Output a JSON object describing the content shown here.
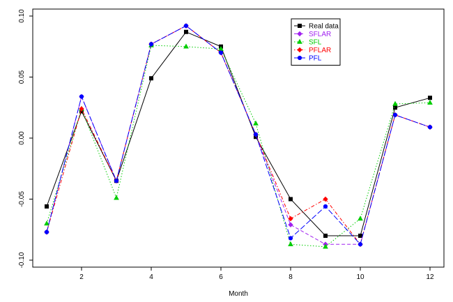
{
  "chart_data": {
    "type": "line",
    "title": "",
    "xlabel": "Month",
    "ylabel": "",
    "xlim": [
      1,
      12
    ],
    "ylim": [
      -0.1,
      0.1
    ],
    "x": [
      1,
      2,
      3,
      4,
      5,
      6,
      7,
      8,
      9,
      10,
      11,
      12
    ],
    "xticks": [
      2,
      4,
      6,
      8,
      10,
      12
    ],
    "xtick_labels": [
      "2",
      "4",
      "6",
      "8",
      "10",
      "12"
    ],
    "yticks": [
      -0.1,
      -0.05,
      0,
      0.05,
      0.1
    ],
    "ytick_labels": [
      "-0.10",
      "-0.05",
      "0.00",
      "0.05",
      "0.10"
    ],
    "grid": false,
    "legend_position": "top-right",
    "series": [
      {
        "name": "Real data",
        "color": "#000000",
        "marker": "square",
        "dash": "solid",
        "values": [
          -0.056,
          0.022,
          -0.035,
          0.049,
          0.087,
          0.075,
          0.001,
          -0.05,
          -0.08,
          -0.08,
          0.025,
          0.033
        ]
      },
      {
        "name": "SFLAR",
        "color": "#a020f0",
        "marker": "diamond",
        "dash": "dashed",
        "values": [
          -0.077,
          0.034,
          -0.035,
          0.077,
          0.092,
          0.07,
          0.003,
          -0.071,
          -0.087,
          -0.087,
          0.019,
          0.009
        ]
      },
      {
        "name": "SFL",
        "color": "#00cd00",
        "marker": "triangle",
        "dash": "dotted",
        "values": [
          -0.07,
          0.024,
          -0.049,
          0.076,
          0.075,
          0.073,
          0.012,
          -0.087,
          -0.089,
          -0.066,
          0.028,
          0.029
        ]
      },
      {
        "name": "PFLAR",
        "color": "#ff0000",
        "marker": "diamond",
        "dash": "dotdash",
        "values": [
          -0.077,
          0.024,
          -0.035,
          0.077,
          0.092,
          0.07,
          0.003,
          -0.066,
          -0.05,
          -0.087,
          0.019,
          0.009
        ]
      },
      {
        "name": "PFL",
        "color": "#0000ff",
        "marker": "circle",
        "dash": "longdash",
        "values": [
          -0.077,
          0.034,
          -0.035,
          0.077,
          0.092,
          0.07,
          0.003,
          -0.082,
          -0.056,
          -0.087,
          0.019,
          0.009
        ]
      }
    ]
  }
}
